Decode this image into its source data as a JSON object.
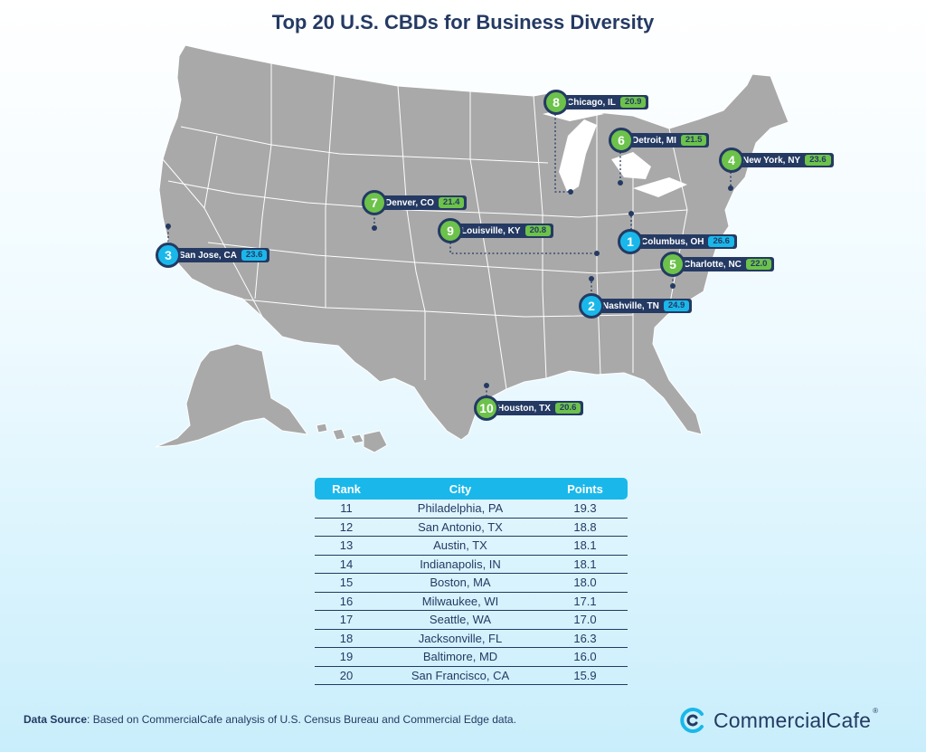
{
  "title": "Top 20 U.S. CBDs for Business Diversity",
  "colors": {
    "navy": "#243a63",
    "green_badge": "#6cc24a",
    "blue_badge": "#1ab8ea",
    "map_fill": "#a9a9a9"
  },
  "map": {
    "markers": [
      {
        "rank": "1",
        "city": "Columbus, OH",
        "score": "26.6",
        "style": "blue"
      },
      {
        "rank": "2",
        "city": "Nashville, TN",
        "score": "24.9",
        "style": "blue"
      },
      {
        "rank": "3",
        "city": "San Jose, CA",
        "score": "23.6",
        "style": "blue"
      },
      {
        "rank": "4",
        "city": "New York, NY",
        "score": "23.6",
        "style": "green"
      },
      {
        "rank": "5",
        "city": "Charlotte, NC",
        "score": "22.0",
        "style": "green"
      },
      {
        "rank": "6",
        "city": "Detroit, MI",
        "score": "21.5",
        "style": "green"
      },
      {
        "rank": "7",
        "city": "Denver, CO",
        "score": "21.4",
        "style": "green"
      },
      {
        "rank": "8",
        "city": "Chicago, IL",
        "score": "20.9",
        "style": "green"
      },
      {
        "rank": "9",
        "city": "Louisville, KY",
        "score": "20.8",
        "style": "green"
      },
      {
        "rank": "10",
        "city": "Houston, TX",
        "score": "20.6",
        "style": "green"
      }
    ]
  },
  "table": {
    "headers": {
      "rank": "Rank",
      "city": "City",
      "points": "Points"
    },
    "rows": [
      {
        "rank": "11",
        "city": "Philadelphia, PA",
        "points": "19.3"
      },
      {
        "rank": "12",
        "city": "San Antonio, TX",
        "points": "18.8"
      },
      {
        "rank": "13",
        "city": "Austin, TX",
        "points": "18.1"
      },
      {
        "rank": "14",
        "city": "Indianapolis, IN",
        "points": "18.1"
      },
      {
        "rank": "15",
        "city": "Boston, MA",
        "points": "18.0"
      },
      {
        "rank": "16",
        "city": "Milwaukee, WI",
        "points": "17.1"
      },
      {
        "rank": "17",
        "city": "Seattle, WA",
        "points": "17.0"
      },
      {
        "rank": "18",
        "city": "Jacksonville, FL",
        "points": "16.3"
      },
      {
        "rank": "19",
        "city": "Baltimore, MD",
        "points": "16.0"
      },
      {
        "rank": "20",
        "city": "San Francisco, CA",
        "points": "15.9"
      }
    ]
  },
  "footer": {
    "source_label": "Data Source",
    "source_text": ": Based on CommercialCafe analysis of U.S. Census Bureau and Commercial Edge data.",
    "brand_name": "CommercialCafe",
    "brand_mark": "®",
    "brand_icon": "commercialcafe-logo-icon"
  }
}
